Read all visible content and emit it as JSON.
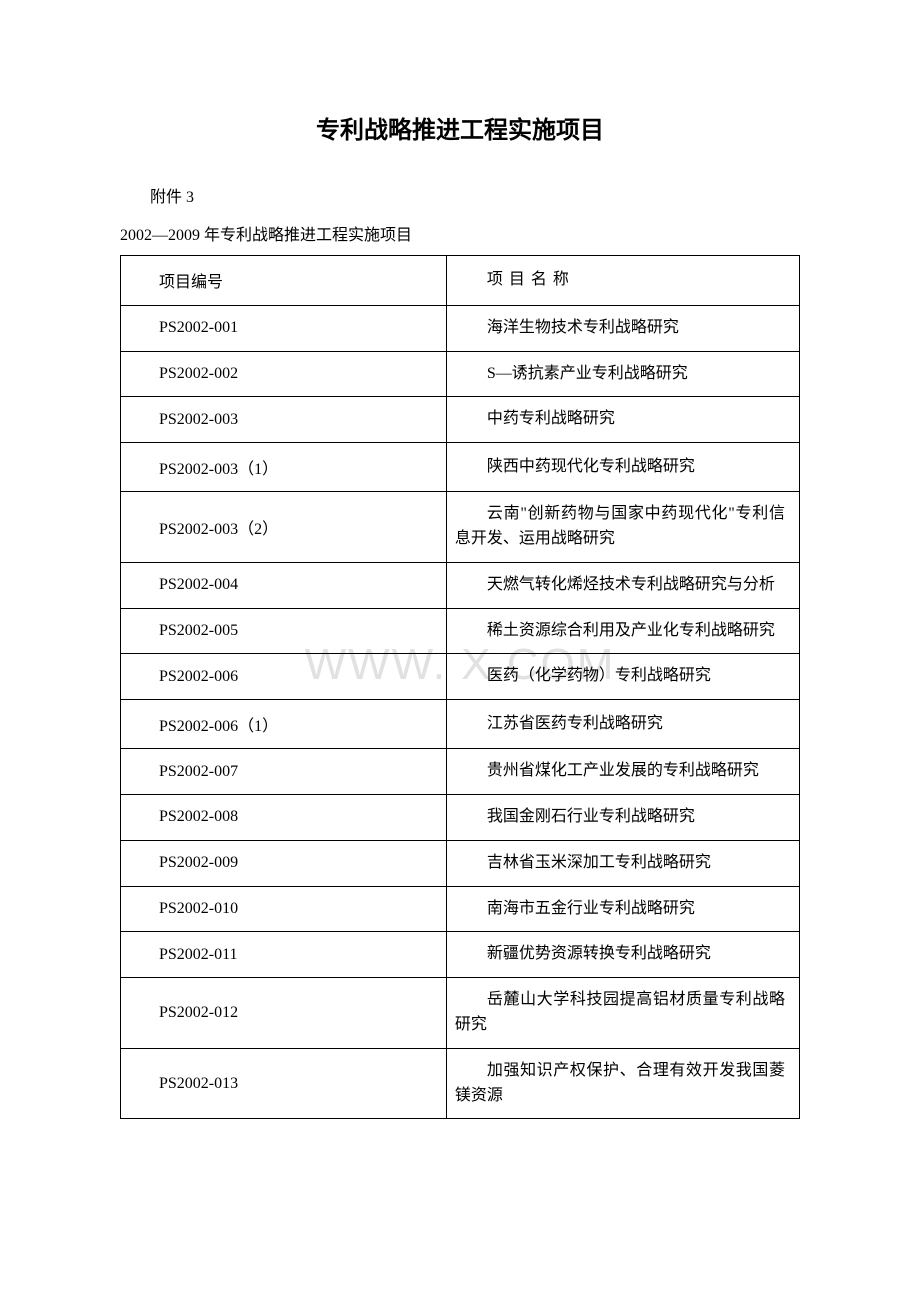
{
  "title": "专利战略推进工程实施项目",
  "attachment_label": "附件 3",
  "subtitle": "2002—2009 年专利战略推进工程实施项目",
  "watermark": "WWW.        X.COM",
  "table": {
    "header": {
      "col_id": "项目编号",
      "col_name": "项 目 名 称"
    },
    "rows": [
      {
        "id": "PS2002-001",
        "name": "海洋生物技术专利战略研究"
      },
      {
        "id": "PS2002-002",
        "name": "S—诱抗素产业专利战略研究"
      },
      {
        "id": "PS2002-003",
        "name": "中药专利战略研究"
      },
      {
        "id": "PS2002-003（1）",
        "name": "陕西中药现代化专利战略研究"
      },
      {
        "id": "PS2002-003（2）",
        "name": "云南\"创新药物与国家中药现代化\"专利信息开发、运用战略研究"
      },
      {
        "id": "PS2002-004",
        "name": "天燃气转化烯烃技术专利战略研究与分析"
      },
      {
        "id": "PS2002-005",
        "name": "稀土资源综合利用及产业化专利战略研究"
      },
      {
        "id": "PS2002-006",
        "name": "医药（化学药物）专利战略研究"
      },
      {
        "id": "PS2002-006（1）",
        "name": "江苏省医药专利战略研究"
      },
      {
        "id": "PS2002-007",
        "name": "贵州省煤化工产业发展的专利战略研究"
      },
      {
        "id": "PS2002-008",
        "name": "我国金刚石行业专利战略研究"
      },
      {
        "id": "PS2002-009",
        "name": "吉林省玉米深加工专利战略研究"
      },
      {
        "id": "PS2002-010",
        "name": "南海市五金行业专利战略研究"
      },
      {
        "id": "PS2002-011",
        "name": "新疆优势资源转换专利战略研究"
      },
      {
        "id": "PS2002-012",
        "name": "岳麓山大学科技园提高铝材质量专利战略研究"
      },
      {
        "id": "PS2002-013",
        "name": "加强知识产权保护、合理有效开发我国菱镁资源"
      }
    ]
  }
}
